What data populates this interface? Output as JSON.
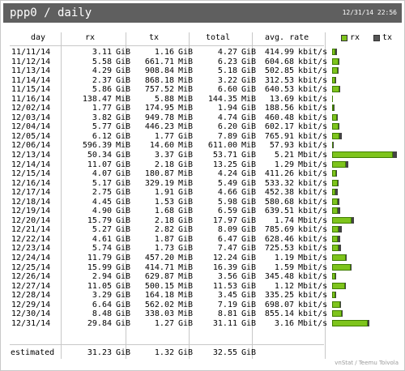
{
  "title": "ppp0 / daily",
  "timestamp": "12/31/14 22:56",
  "columns": {
    "day": "day",
    "rx": "rx",
    "tx": "tx",
    "total": "total",
    "avg": "avg. rate"
  },
  "legend": {
    "rx": "rx",
    "tx": "tx",
    "rx_color": "#7ec41c",
    "tx_color": "#555555"
  },
  "rows": [
    {
      "day": "11/11/14",
      "rx": "3.11",
      "rx_u": "GiB",
      "tx": "1.16",
      "tx_u": "GiB",
      "total": "4.27",
      "total_u": "GiB",
      "avg": "414.99",
      "avg_u": "kbit/s",
      "rx_gib": 3.11,
      "tx_gib": 1.16
    },
    {
      "day": "11/12/14",
      "rx": "5.58",
      "rx_u": "GiB",
      "tx": "661.71",
      "tx_u": "MiB",
      "total": "6.23",
      "total_u": "GiB",
      "avg": "604.68",
      "avg_u": "kbit/s",
      "rx_gib": 5.58,
      "tx_gib": 0.65
    },
    {
      "day": "11/13/14",
      "rx": "4.29",
      "rx_u": "GiB",
      "tx": "908.84",
      "tx_u": "MiB",
      "total": "5.18",
      "total_u": "GiB",
      "avg": "502.85",
      "avg_u": "kbit/s",
      "rx_gib": 4.29,
      "tx_gib": 0.89
    },
    {
      "day": "11/14/14",
      "rx": "2.37",
      "rx_u": "GiB",
      "tx": "868.18",
      "tx_u": "MiB",
      "total": "3.22",
      "total_u": "GiB",
      "avg": "312.53",
      "avg_u": "kbit/s",
      "rx_gib": 2.37,
      "tx_gib": 0.85
    },
    {
      "day": "11/15/14",
      "rx": "5.86",
      "rx_u": "GiB",
      "tx": "757.52",
      "tx_u": "MiB",
      "total": "6.60",
      "total_u": "GiB",
      "avg": "640.53",
      "avg_u": "kbit/s",
      "rx_gib": 5.86,
      "tx_gib": 0.74
    },
    {
      "day": "11/16/14",
      "rx": "138.47",
      "rx_u": "MiB",
      "tx": "5.88",
      "tx_u": "MiB",
      "total": "144.35",
      "total_u": "MiB",
      "avg": "13.69",
      "avg_u": "kbit/s",
      "rx_gib": 0.14,
      "tx_gib": 0.006
    },
    {
      "day": "12/02/14",
      "rx": "1.77",
      "rx_u": "GiB",
      "tx": "174.95",
      "tx_u": "MiB",
      "total": "1.94",
      "total_u": "GiB",
      "avg": "188.56",
      "avg_u": "kbit/s",
      "rx_gib": 1.77,
      "tx_gib": 0.17
    },
    {
      "day": "12/03/14",
      "rx": "3.82",
      "rx_u": "GiB",
      "tx": "949.78",
      "tx_u": "MiB",
      "total": "4.74",
      "total_u": "GiB",
      "avg": "460.48",
      "avg_u": "kbit/s",
      "rx_gib": 3.82,
      "tx_gib": 0.93
    },
    {
      "day": "12/04/14",
      "rx": "5.77",
      "rx_u": "GiB",
      "tx": "446.23",
      "tx_u": "MiB",
      "total": "6.20",
      "total_u": "GiB",
      "avg": "602.17",
      "avg_u": "kbit/s",
      "rx_gib": 5.77,
      "tx_gib": 0.44
    },
    {
      "day": "12/05/14",
      "rx": "6.12",
      "rx_u": "GiB",
      "tx": "1.77",
      "tx_u": "GiB",
      "total": "7.89",
      "total_u": "GiB",
      "avg": "765.91",
      "avg_u": "kbit/s",
      "rx_gib": 6.12,
      "tx_gib": 1.77
    },
    {
      "day": "12/06/14",
      "rx": "596.39",
      "rx_u": "MiB",
      "tx": "14.60",
      "tx_u": "MiB",
      "total": "611.00",
      "total_u": "MiB",
      "avg": "57.93",
      "avg_u": "kbit/s",
      "rx_gib": 0.58,
      "tx_gib": 0.014
    },
    {
      "day": "12/13/14",
      "rx": "50.34",
      "rx_u": "GiB",
      "tx": "3.37",
      "tx_u": "GiB",
      "total": "53.71",
      "total_u": "GiB",
      "avg": "5.21",
      "avg_u": "Mbit/s",
      "rx_gib": 50.34,
      "tx_gib": 3.37
    },
    {
      "day": "12/14/14",
      "rx": "11.07",
      "rx_u": "GiB",
      "tx": "2.18",
      "tx_u": "GiB",
      "total": "13.25",
      "total_u": "GiB",
      "avg": "1.29",
      "avg_u": "Mbit/s",
      "rx_gib": 11.07,
      "tx_gib": 2.18
    },
    {
      "day": "12/15/14",
      "rx": "4.07",
      "rx_u": "GiB",
      "tx": "180.87",
      "tx_u": "MiB",
      "total": "4.24",
      "total_u": "GiB",
      "avg": "411.26",
      "avg_u": "kbit/s",
      "rx_gib": 4.07,
      "tx_gib": 0.18
    },
    {
      "day": "12/16/14",
      "rx": "5.17",
      "rx_u": "GiB",
      "tx": "329.19",
      "tx_u": "MiB",
      "total": "5.49",
      "total_u": "GiB",
      "avg": "533.32",
      "avg_u": "kbit/s",
      "rx_gib": 5.17,
      "tx_gib": 0.32
    },
    {
      "day": "12/17/14",
      "rx": "2.75",
      "rx_u": "GiB",
      "tx": "1.91",
      "tx_u": "GiB",
      "total": "4.66",
      "total_u": "GiB",
      "avg": "452.38",
      "avg_u": "kbit/s",
      "rx_gib": 2.75,
      "tx_gib": 1.91
    },
    {
      "day": "12/18/14",
      "rx": "4.45",
      "rx_u": "GiB",
      "tx": "1.53",
      "tx_u": "GiB",
      "total": "5.98",
      "total_u": "GiB",
      "avg": "580.68",
      "avg_u": "kbit/s",
      "rx_gib": 4.45,
      "tx_gib": 1.53
    },
    {
      "day": "12/19/14",
      "rx": "4.90",
      "rx_u": "GiB",
      "tx": "1.68",
      "tx_u": "GiB",
      "total": "6.59",
      "total_u": "GiB",
      "avg": "639.51",
      "avg_u": "kbit/s",
      "rx_gib": 4.9,
      "tx_gib": 1.68
    },
    {
      "day": "12/20/14",
      "rx": "15.79",
      "rx_u": "GiB",
      "tx": "2.18",
      "tx_u": "GiB",
      "total": "17.97",
      "total_u": "GiB",
      "avg": "1.74",
      "avg_u": "Mbit/s",
      "rx_gib": 15.79,
      "tx_gib": 2.18
    },
    {
      "day": "12/21/14",
      "rx": "5.27",
      "rx_u": "GiB",
      "tx": "2.82",
      "tx_u": "GiB",
      "total": "8.09",
      "total_u": "GiB",
      "avg": "785.69",
      "avg_u": "kbit/s",
      "rx_gib": 5.27,
      "tx_gib": 2.82
    },
    {
      "day": "12/22/14",
      "rx": "4.61",
      "rx_u": "GiB",
      "tx": "1.87",
      "tx_u": "GiB",
      "total": "6.47",
      "total_u": "GiB",
      "avg": "628.46",
      "avg_u": "kbit/s",
      "rx_gib": 4.61,
      "tx_gib": 1.87
    },
    {
      "day": "12/23/14",
      "rx": "5.74",
      "rx_u": "GiB",
      "tx": "1.73",
      "tx_u": "GiB",
      "total": "7.47",
      "total_u": "GiB",
      "avg": "725.53",
      "avg_u": "kbit/s",
      "rx_gib": 5.74,
      "tx_gib": 1.73
    },
    {
      "day": "12/24/14",
      "rx": "11.79",
      "rx_u": "GiB",
      "tx": "457.20",
      "tx_u": "MiB",
      "total": "12.24",
      "total_u": "GiB",
      "avg": "1.19",
      "avg_u": "Mbit/s",
      "rx_gib": 11.79,
      "tx_gib": 0.45
    },
    {
      "day": "12/25/14",
      "rx": "15.99",
      "rx_u": "GiB",
      "tx": "414.71",
      "tx_u": "MiB",
      "total": "16.39",
      "total_u": "GiB",
      "avg": "1.59",
      "avg_u": "Mbit/s",
      "rx_gib": 15.99,
      "tx_gib": 0.4
    },
    {
      "day": "12/26/14",
      "rx": "2.94",
      "rx_u": "GiB",
      "tx": "629.87",
      "tx_u": "MiB",
      "total": "3.56",
      "total_u": "GiB",
      "avg": "345.48",
      "avg_u": "kbit/s",
      "rx_gib": 2.94,
      "tx_gib": 0.62
    },
    {
      "day": "12/27/14",
      "rx": "11.05",
      "rx_u": "GiB",
      "tx": "500.15",
      "tx_u": "MiB",
      "total": "11.53",
      "total_u": "GiB",
      "avg": "1.12",
      "avg_u": "Mbit/s",
      "rx_gib": 11.05,
      "tx_gib": 0.49
    },
    {
      "day": "12/28/14",
      "rx": "3.29",
      "rx_u": "GiB",
      "tx": "164.18",
      "tx_u": "MiB",
      "total": "3.45",
      "total_u": "GiB",
      "avg": "335.25",
      "avg_u": "kbit/s",
      "rx_gib": 3.29,
      "tx_gib": 0.16
    },
    {
      "day": "12/29/14",
      "rx": "6.64",
      "rx_u": "GiB",
      "tx": "562.02",
      "tx_u": "MiB",
      "total": "7.19",
      "total_u": "GiB",
      "avg": "698.07",
      "avg_u": "kbit/s",
      "rx_gib": 6.64,
      "tx_gib": 0.55
    },
    {
      "day": "12/30/14",
      "rx": "8.48",
      "rx_u": "GiB",
      "tx": "338.03",
      "tx_u": "MiB",
      "total": "8.81",
      "total_u": "GiB",
      "avg": "855.14",
      "avg_u": "kbit/s",
      "rx_gib": 8.48,
      "tx_gib": 0.33
    },
    {
      "day": "12/31/14",
      "rx": "29.84",
      "rx_u": "GiB",
      "tx": "1.27",
      "tx_u": "GiB",
      "total": "31.11",
      "total_u": "GiB",
      "avg": "3.16",
      "avg_u": "Mbit/s",
      "rx_gib": 29.84,
      "tx_gib": 1.27
    }
  ],
  "estimated": {
    "label": "estimated",
    "rx": "31.23",
    "rx_u": "GiB",
    "tx": "1.32",
    "tx_u": "GiB",
    "total": "32.55",
    "total_u": "GiB"
  },
  "footer": "vnStat / Teemu Toivola"
}
